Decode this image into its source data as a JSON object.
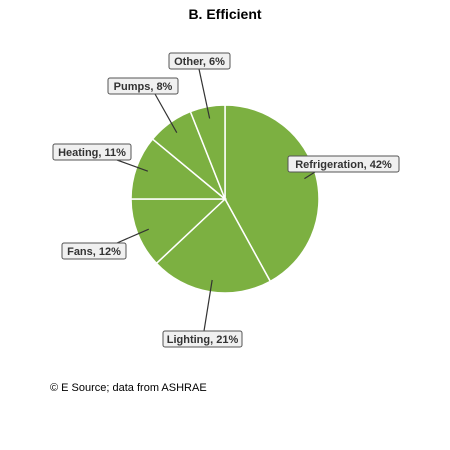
{
  "chart_data": {
    "type": "pie",
    "title": "B. Efficient",
    "slices": [
      {
        "label": "Refrigeration, 42%",
        "name": "Refrigeration",
        "value": 42
      },
      {
        "label": "Lighting, 21%",
        "name": "Lighting",
        "value": 21
      },
      {
        "label": "Fans, 12%",
        "name": "Fans",
        "value": 12
      },
      {
        "label": "Heating, 11%",
        "name": "Heating",
        "value": 11
      },
      {
        "label": "Pumps, 8%",
        "name": "Pumps",
        "value": 8
      },
      {
        "label": "Other, 6%",
        "name": "Other",
        "value": 6
      }
    ],
    "start_angle": "12 o'clock",
    "direction": "clockwise",
    "slice_color": "#7cb041",
    "slice_border_color": "#ffffff",
    "label_box_fill": "#f0f0f0",
    "label_box_border": "#555555",
    "leader_line_color": "#333333"
  },
  "source": "© E Source; data from ASHRAE"
}
